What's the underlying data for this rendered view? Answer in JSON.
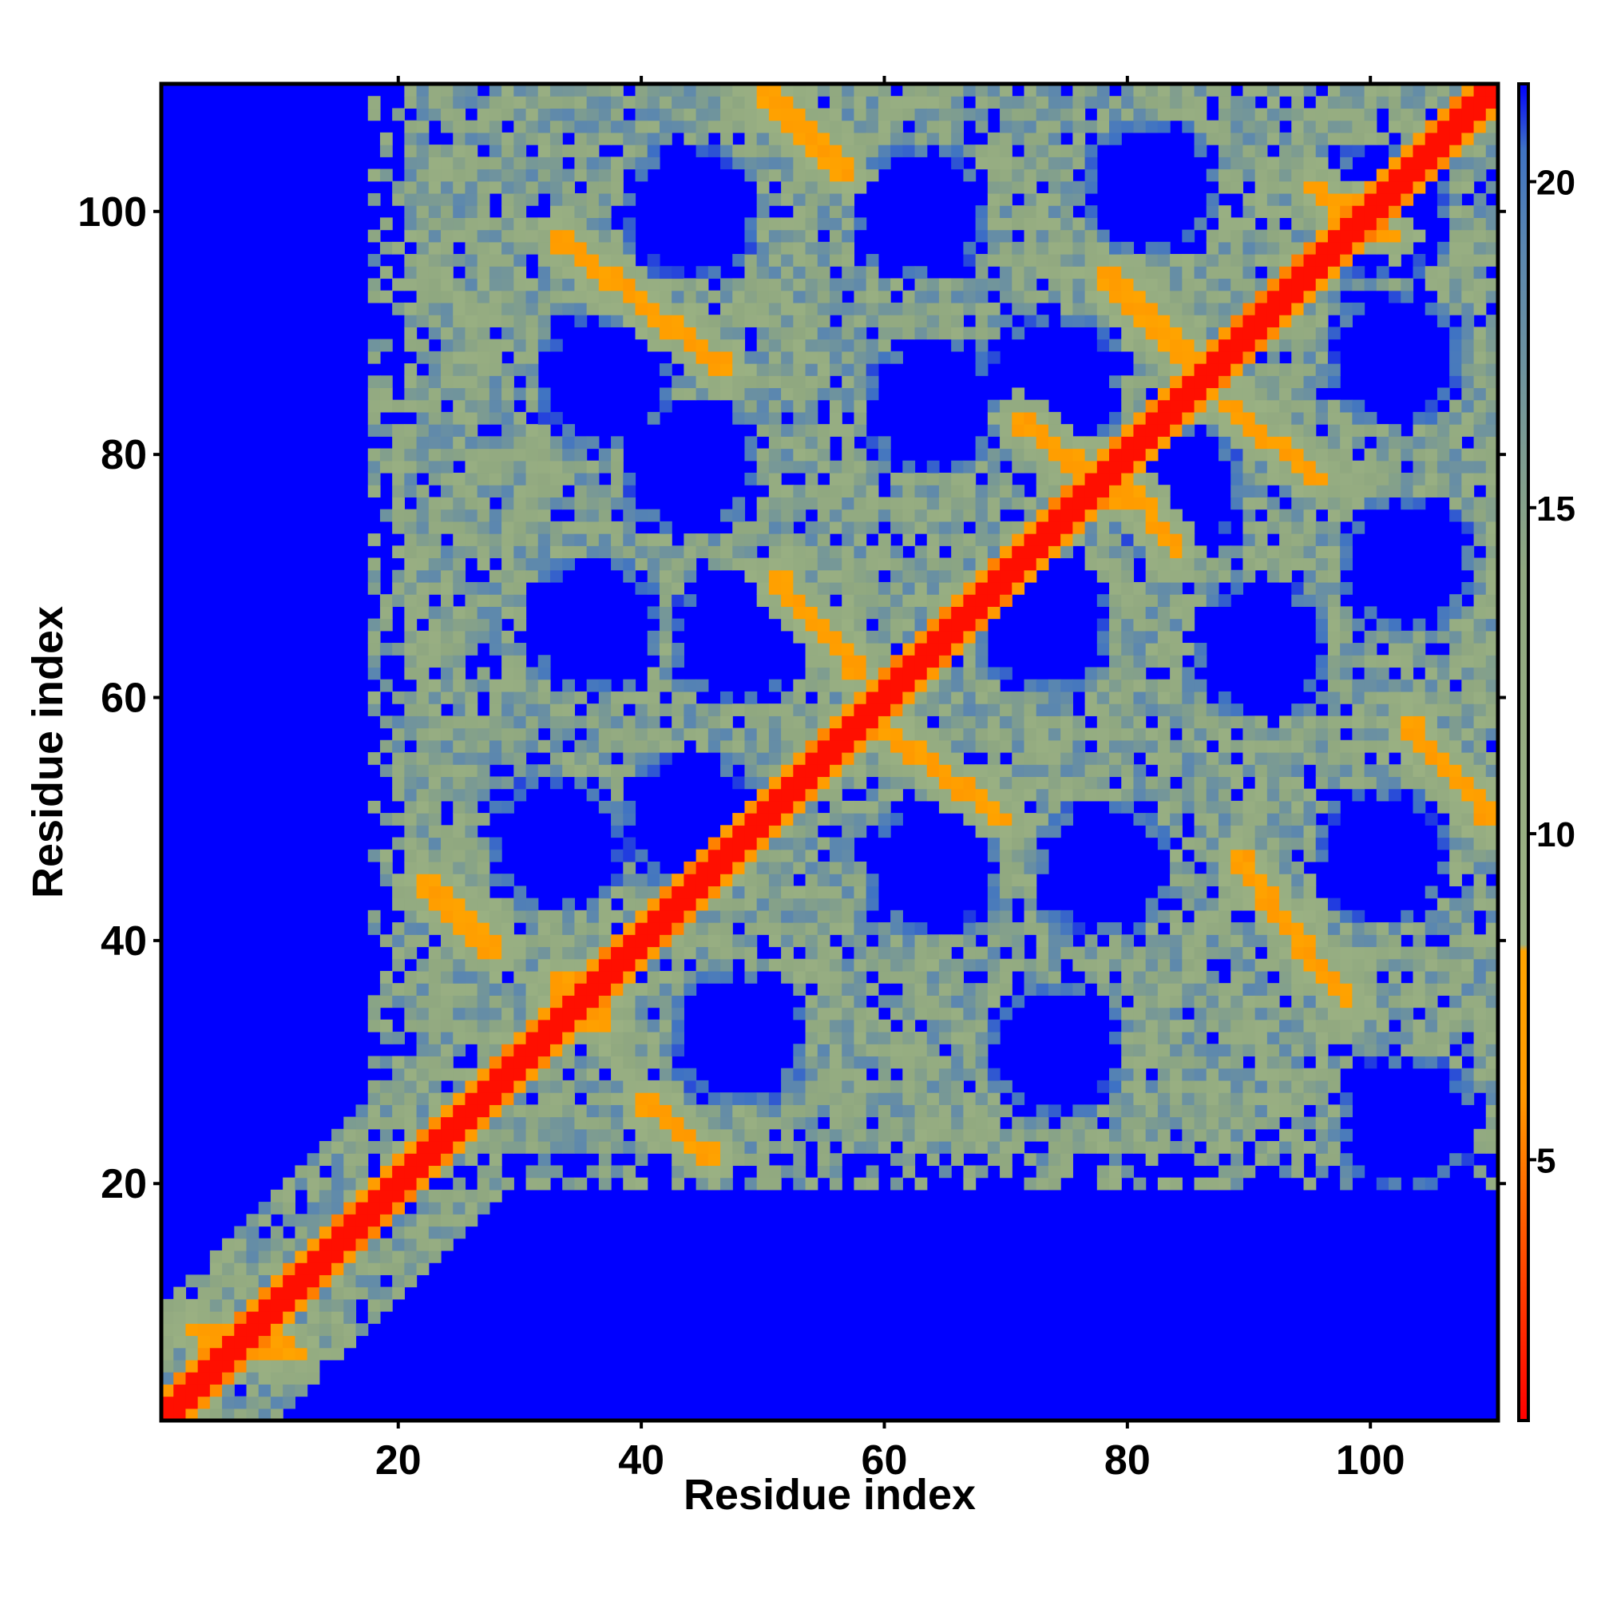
{
  "chart_data": {
    "type": "heatmap",
    "title": "",
    "xlabel": "Residue index",
    "ylabel": "Residue index",
    "xlim": [
      1,
      110
    ],
    "ylim": [
      1,
      110
    ],
    "x_ticks": [
      20,
      40,
      60,
      80,
      100
    ],
    "y_ticks": [
      20,
      40,
      60,
      80,
      100
    ],
    "x_tick_labels": [
      "20",
      "40",
      "60",
      "80",
      "100"
    ],
    "y_tick_labels": [
      "20",
      "40",
      "60",
      "80",
      "100"
    ],
    "colorbar": {
      "range": [
        1,
        21.5
      ],
      "ticks": [
        5,
        10,
        15,
        20
      ],
      "tick_labels": [
        "5",
        "10",
        "15",
        "20"
      ],
      "color_stops": [
        {
          "value": 1,
          "color": "#ff0000"
        },
        {
          "value": 6,
          "color": "#ff9900"
        },
        {
          "value": 8.2,
          "color": "#ffa500"
        },
        {
          "value": 8.3,
          "color": "#9cb283"
        },
        {
          "value": 14,
          "color": "#90a880"
        },
        {
          "value": 19,
          "color": "#5a86b0"
        },
        {
          "value": 20.5,
          "color": "#3f73c3"
        },
        {
          "value": 21.5,
          "color": "#0000ff"
        }
      ]
    },
    "background_color": "#0000ff",
    "grid": false,
    "legend": "colorbar right",
    "contact_bands": [
      {
        "kind": "diagonal",
        "x0": 1,
        "y0": 1,
        "x1": 110,
        "y1": 110
      },
      {
        "kind": "antiparallel",
        "x0": 3,
        "y0": 8,
        "x1": 12,
        "y1": 6
      },
      {
        "kind": "antiparallel",
        "x0": 22,
        "y0": 45,
        "x1": 28,
        "y1": 39
      },
      {
        "kind": "antiparallel",
        "x0": 33,
        "y0": 37,
        "x1": 37,
        "y1": 33
      },
      {
        "kind": "antiparallel",
        "x0": 40,
        "y0": 27,
        "x1": 46,
        "y1": 22
      },
      {
        "kind": "antiparallel",
        "x0": 33,
        "y0": 98,
        "x1": 47,
        "y1": 87
      },
      {
        "kind": "antiparallel",
        "x0": 50,
        "y0": 110,
        "x1": 57,
        "y1": 103
      },
      {
        "kind": "antiparallel",
        "x0": 51,
        "y0": 70,
        "x1": 58,
        "y1": 62
      },
      {
        "kind": "antiparallel",
        "x0": 59,
        "y0": 58,
        "x1": 70,
        "y1": 50
      },
      {
        "kind": "antiparallel",
        "x0": 71,
        "y0": 83,
        "x1": 80,
        "y1": 76
      },
      {
        "kind": "antiparallel",
        "x0": 78,
        "y0": 95,
        "x1": 87,
        "y1": 86
      },
      {
        "kind": "antiparallel",
        "x0": 80,
        "y0": 78,
        "x1": 84,
        "y1": 72
      },
      {
        "kind": "antiparallel",
        "x0": 88,
        "y0": 84,
        "x1": 96,
        "y1": 78
      },
      {
        "kind": "antiparallel",
        "x0": 89,
        "y0": 47,
        "x1": 98,
        "y1": 35
      },
      {
        "kind": "antiparallel",
        "x0": 103,
        "y0": 58,
        "x1": 110,
        "y1": 50
      },
      {
        "kind": "antiparallel",
        "x0": 95,
        "y0": 102,
        "x1": 102,
        "y1": 98
      }
    ],
    "void_regions": [
      {
        "x": 44,
        "y": 100
      },
      {
        "x": 63,
        "y": 100
      },
      {
        "x": 82,
        "y": 102
      },
      {
        "x": 101,
        "y": 100
      },
      {
        "x": 37,
        "y": 86
      },
      {
        "x": 64,
        "y": 84
      },
      {
        "x": 74,
        "y": 86
      },
      {
        "x": 102,
        "y": 88
      },
      {
        "x": 44,
        "y": 79
      },
      {
        "x": 84,
        "y": 77
      },
      {
        "x": 103,
        "y": 71
      },
      {
        "x": 36,
        "y": 66
      },
      {
        "x": 48,
        "y": 65
      },
      {
        "x": 73,
        "y": 66
      },
      {
        "x": 91,
        "y": 64
      },
      {
        "x": 33,
        "y": 48
      },
      {
        "x": 44,
        "y": 50
      },
      {
        "x": 64,
        "y": 46
      },
      {
        "x": 78,
        "y": 46
      },
      {
        "x": 101,
        "y": 47
      },
      {
        "x": 48,
        "y": 32
      },
      {
        "x": 74,
        "y": 31
      },
      {
        "x": 103,
        "y": 25
      }
    ],
    "core_region": {
      "x0": 18,
      "y0": 20,
      "x1": 110,
      "y1": 110
    }
  }
}
